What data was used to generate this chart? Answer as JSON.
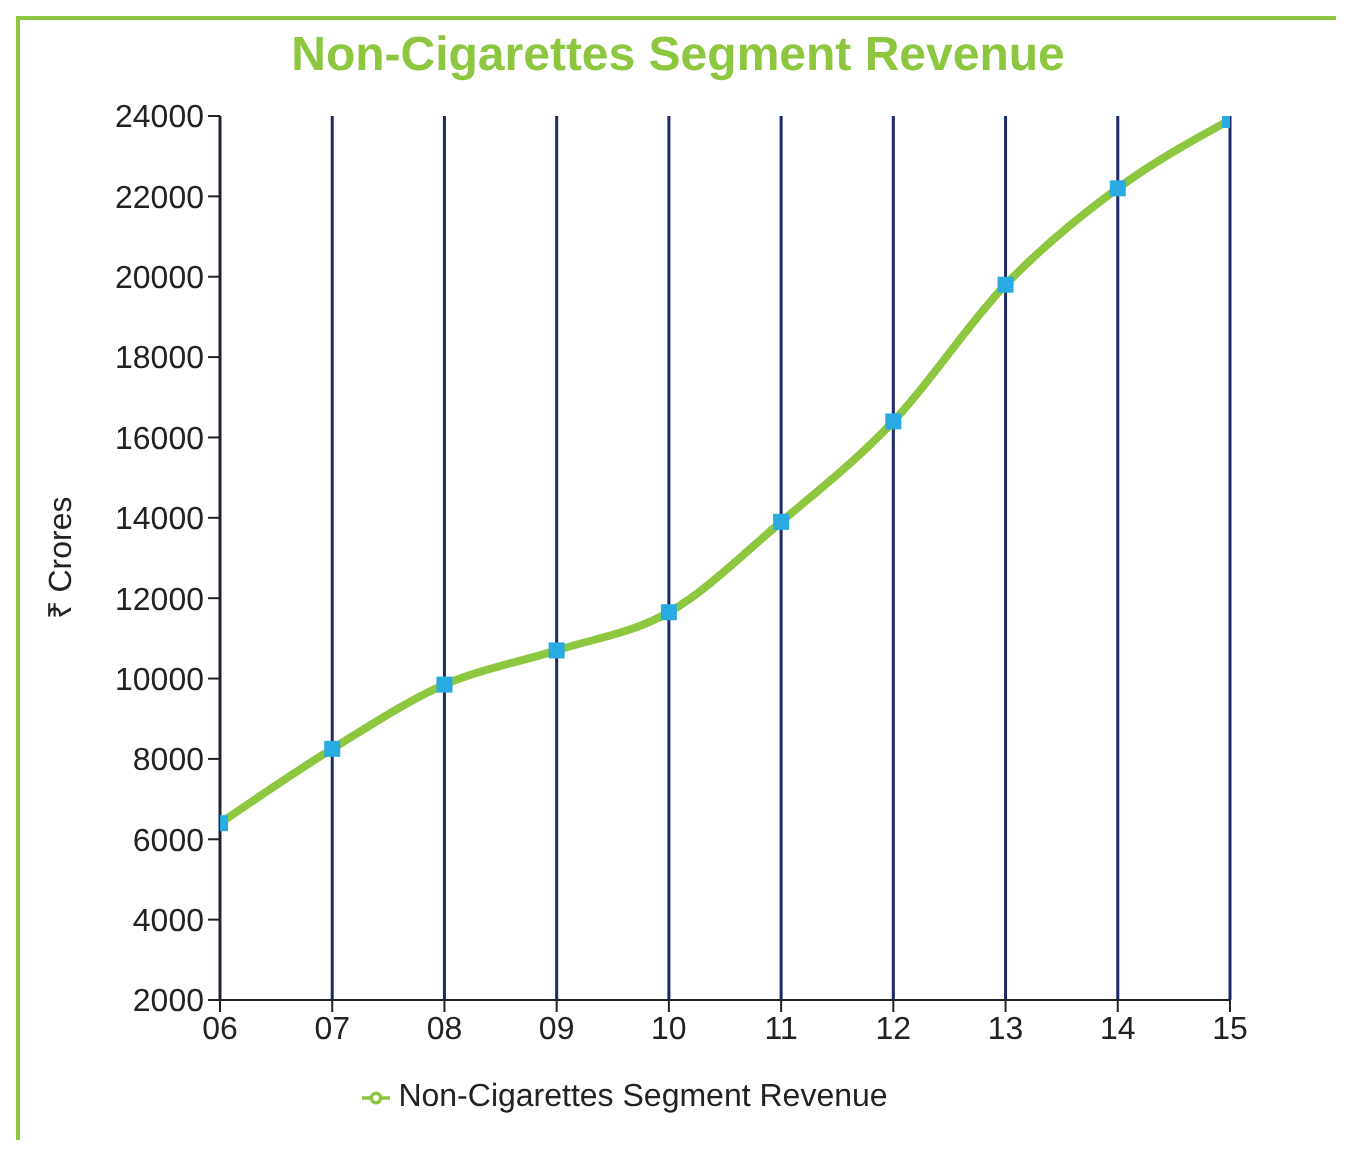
{
  "chart_data": {
    "type": "line",
    "title": "Non-Cigarettes Segment Revenue",
    "ylabel": "₹ Crores",
    "categories": [
      "06",
      "07",
      "08",
      "09",
      "10",
      "11",
      "12",
      "13",
      "14",
      "15"
    ],
    "series": [
      {
        "name": "Non-Cigarettes Segment Revenue",
        "color": "#8dc63f",
        "values": [
          6400,
          8250,
          9850,
          10700,
          11650,
          13900,
          16400,
          19800,
          22200,
          23900
        ]
      }
    ],
    "ylim": [
      2000,
      24000
    ],
    "yticks": [
      2000,
      4000,
      6000,
      8000,
      10000,
      12000,
      14000,
      16000,
      18000,
      20000,
      22000,
      24000
    ],
    "grid": "x",
    "legend": "bottom",
    "marker": "square",
    "line_style": "solid"
  }
}
